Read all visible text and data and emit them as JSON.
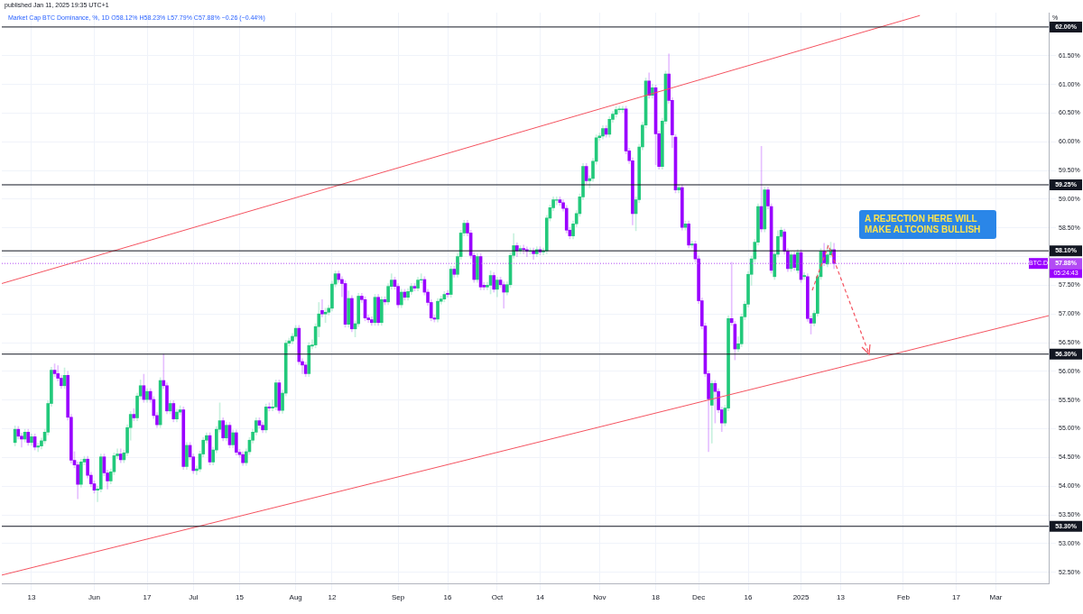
{
  "chart_data": {
    "type": "candlestick",
    "subtitle": "published Jan 11, 2025 19:35 UTC+1",
    "title": "Market Cap BTC Dominance, %, 1D  O58.12% H58.23% L57.79% C57.88% −0.26 (−0.44%)",
    "ylabel": "%",
    "annotations": [
      "A REJECTION HERE WILL MAKE ALTCOINS BULLISH",
      "BTC.D",
      "05:24:43"
    ],
    "colors": [
      "#22c97b",
      "#9a00ff",
      "#9a00ff",
      "#22c97b",
      "#9a00ff",
      "#22c97b",
      "#9a00ff",
      "#22c97b",
      "#22c97b",
      "#22c97b",
      "#22c97b",
      "#22c97b",
      "#9a00ff",
      "#9a00ff",
      "#9a00ff",
      "#22c97b",
      "#9a00ff",
      "#9a00ff",
      "#9a00ff",
      "#9a00ff",
      "#22c97b",
      "#22c97b",
      "#9a00ff",
      "#9a00ff",
      "#9a00ff",
      "#22c97b",
      "#22c97b",
      "#9a00ff",
      "#9a00ff",
      "#22c97b",
      "#22c97b",
      "#22c97b",
      "#9a00ff",
      "#22c97b",
      "#22c97b",
      "#22c97b",
      "#9a00ff",
      "#22c97b",
      "#22c97b",
      "#9a00ff",
      "#22c97b",
      "#9a00ff",
      "#9a00ff",
      "#9a00ff",
      "#22c97b",
      "#9a00ff",
      "#9a00ff",
      "#22c97b",
      "#9a00ff",
      "#22c97b",
      "#22c97b",
      "#9a00ff",
      "#22c97b",
      "#9a00ff",
      "#9a00ff",
      "#22c97b",
      "#22c97b",
      "#22c97b",
      "#22c97b",
      "#9a00ff",
      "#22c97b",
      "#22c97b",
      "#22c97b",
      "#9a00ff",
      "#22c97b",
      "#9a00ff",
      "#22c97b",
      "#9a00ff",
      "#9a00ff",
      "#9a00ff",
      "#22c97b",
      "#22c97b",
      "#22c97b",
      "#22c97b",
      "#9a00ff",
      "#9a00ff",
      "#22c97b",
      "#9a00ff",
      "#22c97b",
      "#22c97b",
      "#9a00ff",
      "#22c97b",
      "#22c97b",
      "#22c97b",
      "#22c97b",
      "#22c97b",
      "#9a00ff",
      "#9a00ff",
      "#9a00ff",
      "#22c97b",
      "#22c97b",
      "#22c97b",
      "#22c97b",
      "#9a00ff",
      "#22c97b",
      "#22c97b",
      "#22c97b",
      "#22c97b",
      "#9a00ff",
      "#9a00ff",
      "#9a00ff",
      "#22c97b",
      "#9a00ff",
      "#22c97b",
      "#22c97b",
      "#9a00ff",
      "#9a00ff",
      "#9a00ff",
      "#9a00ff",
      "#22c97b",
      "#9a00ff",
      "#22c97b",
      "#9a00ff",
      "#22c97b",
      "#22c97b",
      "#9a00ff",
      "#9a00ff",
      "#22c97b",
      "#9a00ff",
      "#22c97b",
      "#22c97b",
      "#9a00ff",
      "#22c97b",
      "#22c97b",
      "#9a00ff",
      "#9a00ff",
      "#9a00ff",
      "#9a00ff",
      "#22c97b",
      "#22c97b",
      "#22c97b",
      "#9a00ff",
      "#22c97b",
      "#9a00ff",
      "#22c97b",
      "#22c97b",
      "#22c97b",
      "#9a00ff",
      "#9a00ff",
      "#9a00ff",
      "#22c97b",
      "#9a00ff",
      "#9a00ff",
      "#22c97b",
      "#22c97b",
      "#9a00ff",
      "#22c97b",
      "#9a00ff",
      "#9a00ff",
      "#22c97b",
      "#22c97b",
      "#22c97b",
      "#9a00ff",
      "#22c97b",
      "#9a00ff",
      "#9a00ff",
      "#22c97b",
      "#9a00ff",
      "#22c97b",
      "#9a00ff",
      "#22c97b",
      "#22c97b",
      "#22c97b",
      "#22c97b",
      "#22c97b",
      "#9a00ff",
      "#9a00ff",
      "#9a00ff",
      "#9a00ff",
      "#22c97b",
      "#22c97b",
      "#22c97b",
      "#22c97b",
      "#9a00ff",
      "#22c97b",
      "#22c97b",
      "#22c97b",
      "#22c97b",
      "#22c97b",
      "#9a00ff",
      "#22c97b",
      "#22c97b",
      "#22c97b",
      "#22c97b",
      "#22c97b",
      "#9a00ff",
      "#9a00ff",
      "#9a00ff",
      "#22c97b",
      "#22c97b",
      "#22c97b",
      "#22c97b",
      "#9a00ff",
      "#22c97b",
      "#9a00ff",
      "#9a00ff",
      "#22c97b",
      "#22c97b",
      "#9a00ff",
      "#9a00ff",
      "#9a00ff",
      "#22c97b",
      "#9a00ff",
      "#22c97b",
      "#9a00ff",
      "#22c97b",
      "#9a00ff",
      "#9a00ff",
      "#9a00ff",
      "#9a00ff",
      "#9a00ff",
      "#22c97b",
      "#9a00ff",
      "#9a00ff",
      "#9a00ff",
      "#22c97b",
      "#22c97b",
      "#9a00ff",
      "#9a00ff",
      "#22c97b",
      "#22c97b",
      "#22c97b",
      "#22c97b",
      "#22c97b",
      "#22c97b",
      "#22c97b",
      "#9a00ff",
      "#22c97b",
      "#9a00ff",
      "#9a00ff",
      "#22c97b",
      "#22c97b",
      "#22c97b",
      "#9a00ff",
      "#9a00ff",
      "#22c97b",
      "#9a00ff",
      "#22c97b",
      "#9a00ff",
      "#22c97b",
      "#9a00ff",
      "#9a00ff",
      "#22c97b",
      "#22c97b",
      "#22c97b",
      "#9a00ff",
      "#22c97b",
      "#22c97b",
      "#9a00ff"
    ],
    "x": [
      "2024-05-08",
      "2024-05-09",
      "2024-05-10",
      "2024-05-11",
      "2024-05-12",
      "2024-05-13",
      "2024-05-14",
      "2024-05-15",
      "2024-05-16",
      "2024-05-17",
      "2024-05-18",
      "2024-05-19",
      "2024-05-20",
      "2024-05-21",
      "2024-05-22",
      "2024-05-23",
      "2024-05-24",
      "2024-05-25",
      "2024-05-26",
      "2024-05-27",
      "2024-05-28",
      "2024-05-29",
      "2024-05-30",
      "2024-05-31",
      "2024-06-01",
      "2024-06-02",
      "2024-06-03",
      "2024-06-04",
      "2024-06-05",
      "2024-06-06",
      "2024-06-07",
      "2024-06-08",
      "2024-06-09",
      "2024-06-10",
      "2024-06-11",
      "2024-06-12",
      "2024-06-13",
      "2024-06-14",
      "2024-06-15",
      "2024-06-16",
      "2024-06-17",
      "2024-06-18",
      "2024-06-19",
      "2024-06-20",
      "2024-06-21",
      "2024-06-22",
      "2024-06-23",
      "2024-06-24",
      "2024-06-25",
      "2024-06-26",
      "2024-06-27",
      "2024-06-28",
      "2024-06-29",
      "2024-06-30",
      "2024-07-01",
      "2024-07-02",
      "2024-07-03",
      "2024-07-04",
      "2024-07-05",
      "2024-07-06",
      "2024-07-07",
      "2024-07-08",
      "2024-07-09",
      "2024-07-10",
      "2024-07-11",
      "2024-07-12",
      "2024-07-13",
      "2024-07-14",
      "2024-07-15",
      "2024-07-16",
      "2024-07-17",
      "2024-07-18",
      "2024-07-19",
      "2024-07-20",
      "2024-07-21",
      "2024-07-22",
      "2024-07-23",
      "2024-07-24",
      "2024-07-25",
      "2024-07-26",
      "2024-07-27",
      "2024-07-28",
      "2024-07-29",
      "2024-07-30",
      "2024-07-31",
      "2024-08-01",
      "2024-08-02",
      "2024-08-03",
      "2024-08-04",
      "2024-08-05",
      "2024-08-06",
      "2024-08-07",
      "2024-08-08",
      "2024-08-09",
      "2024-08-10",
      "2024-08-11",
      "2024-08-12",
      "2024-08-13",
      "2024-08-14",
      "2024-08-15",
      "2024-08-16",
      "2024-08-17",
      "2024-08-18",
      "2024-08-19",
      "2024-08-20",
      "2024-08-21",
      "2024-08-22",
      "2024-08-23",
      "2024-08-24",
      "2024-08-25",
      "2024-08-26",
      "2024-08-27",
      "2024-08-28",
      "2024-08-29",
      "2024-08-30",
      "2024-08-31",
      "2024-09-01",
      "2024-09-02",
      "2024-09-03",
      "2024-09-04",
      "2024-09-05",
      "2024-09-06",
      "2024-09-07",
      "2024-09-08",
      "2024-09-09",
      "2024-09-10",
      "2024-09-11",
      "2024-09-12",
      "2024-09-13",
      "2024-09-14",
      "2024-09-15",
      "2024-09-16",
      "2024-09-17",
      "2024-09-18",
      "2024-09-19",
      "2024-09-20",
      "2024-09-21",
      "2024-09-22",
      "2024-09-23",
      "2024-09-24",
      "2024-09-25",
      "2024-09-26",
      "2024-09-27",
      "2024-09-28",
      "2024-09-29",
      "2024-09-30",
      "2024-10-01",
      "2024-10-02",
      "2024-10-03",
      "2024-10-04",
      "2024-10-05",
      "2024-10-06",
      "2024-10-07",
      "2024-10-08",
      "2024-10-09",
      "2024-10-10",
      "2024-10-11",
      "2024-10-12",
      "2024-10-13",
      "2024-10-14",
      "2024-10-15",
      "2024-10-16",
      "2024-10-17",
      "2024-10-18",
      "2024-10-19",
      "2024-10-20",
      "2024-10-21",
      "2024-10-22",
      "2024-10-23",
      "2024-10-24",
      "2024-10-25",
      "2024-10-26",
      "2024-10-27",
      "2024-10-28",
      "2024-10-29",
      "2024-10-30",
      "2024-10-31",
      "2024-11-01",
      "2024-11-02",
      "2024-11-03",
      "2024-11-04",
      "2024-11-05",
      "2024-11-06",
      "2024-11-07",
      "2024-11-08",
      "2024-11-09",
      "2024-11-10",
      "2024-11-11",
      "2024-11-12",
      "2024-11-13",
      "2024-11-14",
      "2024-11-15",
      "2024-11-16",
      "2024-11-17",
      "2024-11-18",
      "2024-11-19",
      "2024-11-20",
      "2024-11-21",
      "2024-11-22",
      "2024-11-23",
      "2024-11-24",
      "2024-11-25",
      "2024-11-26",
      "2024-11-27",
      "2024-11-28",
      "2024-11-29",
      "2024-11-30",
      "2024-12-01",
      "2024-12-02",
      "2024-12-03",
      "2024-12-04",
      "2024-12-05",
      "2024-12-06",
      "2024-12-07",
      "2024-12-08",
      "2024-12-09",
      "2024-12-10",
      "2024-12-11",
      "2024-12-12",
      "2024-12-13",
      "2024-12-14",
      "2024-12-15",
      "2024-12-16",
      "2024-12-17",
      "2024-12-18",
      "2024-12-19",
      "2024-12-20",
      "2024-12-21",
      "2024-12-22",
      "2024-12-23",
      "2024-12-24",
      "2024-12-25",
      "2024-12-26",
      "2024-12-27",
      "2024-12-28",
      "2024-12-29",
      "2024-12-30",
      "2024-12-31",
      "2025-01-01",
      "2025-01-02",
      "2025-01-03",
      "2025-01-04",
      "2025-01-05",
      "2025-01-06",
      "2025-01-07",
      "2025-01-08",
      "2025-01-09",
      "2025-01-10",
      "2025-01-11"
    ],
    "ohlc": [
      [
        54.76,
        55.05,
        54.7,
        54.99
      ],
      [
        54.99,
        55.04,
        54.82,
        54.87
      ],
      [
        54.87,
        54.92,
        54.68,
        54.82
      ],
      [
        54.82,
        54.99,
        54.77,
        54.94
      ],
      [
        54.94,
        54.99,
        54.71,
        54.76
      ],
      [
        54.76,
        54.91,
        54.71,
        54.86
      ],
      [
        54.86,
        54.91,
        54.63,
        54.68
      ],
      [
        54.68,
        54.75,
        54.6,
        54.7
      ],
      [
        54.7,
        54.84,
        54.65,
        54.79
      ],
      [
        54.79,
        54.99,
        54.74,
        54.94
      ],
      [
        54.94,
        55.49,
        54.89,
        55.44
      ],
      [
        55.44,
        56.07,
        55.39,
        56.02
      ],
      [
        56.02,
        56.13,
        55.91,
        55.96
      ],
      [
        55.96,
        56.1,
        55.83,
        55.88
      ],
      [
        55.88,
        55.93,
        55.7,
        55.75
      ],
      [
        55.75,
        56.06,
        55.7,
        55.93
      ],
      [
        55.93,
        56.0,
        55.15,
        55.2
      ],
      [
        55.2,
        55.25,
        54.4,
        54.45
      ],
      [
        54.45,
        54.6,
        54.32,
        54.37
      ],
      [
        54.37,
        54.42,
        53.78,
        54.03
      ],
      [
        54.03,
        54.47,
        53.98,
        54.42
      ],
      [
        54.42,
        54.52,
        54.37,
        54.47
      ],
      [
        54.47,
        54.52,
        54.14,
        54.19
      ],
      [
        54.19,
        54.24,
        53.99,
        54.04
      ],
      [
        54.04,
        54.09,
        53.88,
        53.93
      ],
      [
        53.93,
        54.0,
        53.73,
        53.95
      ],
      [
        53.95,
        54.56,
        53.9,
        54.51
      ],
      [
        54.51,
        54.56,
        54.18,
        54.23
      ],
      [
        54.23,
        54.28,
        53.95,
        54.09
      ],
      [
        54.09,
        54.3,
        54.04,
        54.25
      ],
      [
        54.25,
        54.58,
        54.2,
        54.53
      ],
      [
        54.53,
        54.65,
        54.48,
        54.56
      ],
      [
        54.56,
        54.65,
        54.41,
        54.46
      ],
      [
        54.46,
        54.63,
        54.41,
        54.58
      ],
      [
        54.58,
        55.07,
        54.53,
        55.02
      ],
      [
        55.02,
        55.3,
        54.8,
        55.25
      ],
      [
        55.25,
        55.35,
        55.14,
        55.19
      ],
      [
        55.19,
        55.62,
        55.14,
        55.57
      ],
      [
        55.57,
        55.85,
        55.52,
        55.75
      ],
      [
        55.75,
        55.95,
        55.46,
        55.51
      ],
      [
        55.51,
        55.7,
        55.46,
        55.65
      ],
      [
        55.65,
        55.7,
        55.46,
        55.51
      ],
      [
        55.51,
        55.56,
        55.18,
        55.23
      ],
      [
        55.23,
        55.28,
        55.02,
        55.07
      ],
      [
        55.07,
        55.89,
        55.02,
        55.84
      ],
      [
        55.84,
        56.3,
        55.7,
        55.75
      ],
      [
        55.75,
        55.8,
        55.26,
        55.31
      ],
      [
        55.31,
        55.49,
        55.26,
        55.44
      ],
      [
        55.44,
        55.49,
        55.12,
        55.17
      ],
      [
        55.17,
        55.34,
        55.12,
        55.29
      ],
      [
        55.29,
        55.4,
        55.24,
        55.33
      ],
      [
        55.33,
        55.38,
        54.29,
        54.34
      ],
      [
        54.34,
        54.76,
        54.29,
        54.71
      ],
      [
        54.71,
        54.76,
        54.46,
        54.51
      ],
      [
        54.51,
        54.56,
        54.22,
        54.27
      ],
      [
        54.27,
        54.35,
        54.2,
        54.3
      ],
      [
        54.3,
        54.61,
        54.25,
        54.56
      ],
      [
        54.56,
        54.85,
        54.51,
        54.8
      ],
      [
        54.8,
        54.93,
        54.75,
        54.88
      ],
      [
        54.88,
        54.93,
        54.37,
        54.42
      ],
      [
        54.42,
        54.68,
        54.37,
        54.63
      ],
      [
        54.63,
        55.04,
        54.58,
        54.99
      ],
      [
        54.99,
        55.45,
        54.94,
        55.14
      ],
      [
        55.14,
        55.19,
        54.79,
        54.84
      ],
      [
        54.84,
        55.11,
        54.79,
        55.06
      ],
      [
        55.06,
        55.11,
        54.67,
        54.72
      ],
      [
        54.72,
        54.98,
        54.67,
        54.93
      ],
      [
        54.93,
        54.98,
        54.54,
        54.59
      ],
      [
        54.59,
        54.64,
        54.5,
        54.55
      ],
      [
        54.55,
        54.6,
        54.36,
        54.41
      ],
      [
        54.41,
        54.65,
        54.36,
        54.6
      ],
      [
        54.6,
        54.85,
        54.55,
        54.8
      ],
      [
        54.8,
        54.99,
        54.75,
        54.94
      ],
      [
        54.94,
        55.19,
        54.89,
        55.14
      ],
      [
        55.14,
        55.19,
        55.01,
        55.06
      ],
      [
        55.06,
        55.11,
        54.93,
        54.98
      ],
      [
        54.98,
        55.43,
        54.93,
        55.38
      ],
      [
        55.38,
        55.45,
        55.31,
        55.36
      ],
      [
        55.36,
        55.5,
        55.31,
        55.38
      ],
      [
        55.38,
        55.85,
        55.33,
        55.8
      ],
      [
        55.8,
        55.85,
        55.27,
        55.32
      ],
      [
        55.32,
        55.67,
        55.27,
        55.62
      ],
      [
        55.62,
        56.54,
        55.57,
        56.49
      ],
      [
        56.49,
        56.58,
        56.44,
        56.53
      ],
      [
        56.53,
        56.66,
        56.48,
        56.61
      ],
      [
        56.61,
        56.8,
        56.56,
        56.75
      ],
      [
        56.75,
        56.8,
        56.12,
        56.17
      ],
      [
        56.17,
        56.22,
        55.96,
        56.11
      ],
      [
        56.11,
        56.16,
        55.91,
        55.96
      ],
      [
        55.96,
        56.5,
        55.91,
        56.45
      ],
      [
        56.44,
        56.55,
        56.39,
        56.46
      ],
      [
        56.46,
        56.83,
        56.41,
        56.78
      ],
      [
        56.78,
        57.2,
        56.6,
        57.0
      ],
      [
        57.06,
        57.25,
        56.95,
        57.0
      ],
      [
        57.0,
        57.1,
        56.85,
        57.03
      ],
      [
        57.03,
        57.15,
        56.98,
        57.1
      ],
      [
        57.1,
        57.57,
        57.05,
        57.52
      ],
      [
        57.52,
        57.75,
        57.47,
        57.7
      ],
      [
        57.7,
        57.75,
        57.55,
        57.6
      ],
      [
        57.6,
        57.65,
        57.3,
        57.53
      ],
      [
        57.53,
        57.58,
        56.77,
        56.82
      ],
      [
        56.82,
        57.4,
        56.77,
        57.27
      ],
      [
        57.27,
        57.32,
        56.69,
        56.74
      ],
      [
        56.74,
        56.88,
        56.6,
        56.83
      ],
      [
        56.83,
        57.36,
        56.78,
        57.31
      ],
      [
        57.31,
        57.36,
        57.2,
        57.25
      ],
      [
        57.25,
        57.3,
        56.88,
        56.93
      ],
      [
        56.93,
        56.98,
        56.85,
        56.9
      ],
      [
        56.9,
        56.95,
        56.8,
        56.85
      ],
      [
        56.85,
        57.34,
        56.8,
        57.29
      ],
      [
        57.29,
        57.34,
        56.8,
        56.85
      ],
      [
        56.85,
        57.3,
        56.8,
        57.25
      ],
      [
        57.25,
        57.3,
        57.16,
        57.21
      ],
      [
        57.21,
        57.53,
        57.16,
        57.48
      ],
      [
        57.48,
        57.7,
        57.43,
        57.59
      ],
      [
        57.59,
        57.64,
        57.43,
        57.48
      ],
      [
        57.48,
        57.53,
        57.11,
        57.16
      ],
      [
        57.16,
        57.43,
        57.11,
        57.38
      ],
      [
        57.38,
        57.43,
        57.24,
        57.29
      ],
      [
        57.29,
        57.44,
        57.24,
        57.39
      ],
      [
        57.39,
        57.53,
        57.34,
        57.48
      ],
      [
        57.48,
        57.53,
        57.4,
        57.45
      ],
      [
        57.45,
        57.64,
        57.4,
        57.59
      ],
      [
        57.59,
        57.7,
        57.54,
        57.6
      ],
      [
        57.6,
        57.65,
        57.33,
        57.38
      ],
      [
        57.38,
        57.43,
        57.15,
        57.2
      ],
      [
        57.2,
        57.25,
        56.88,
        56.93
      ],
      [
        56.93,
        56.98,
        56.86,
        56.91
      ],
      [
        56.91,
        57.27,
        56.86,
        57.22
      ],
      [
        57.22,
        57.31,
        57.17,
        57.26
      ],
      [
        57.26,
        57.39,
        57.21,
        57.34
      ],
      [
        57.36,
        57.41,
        57.29,
        57.34
      ],
      [
        57.34,
        57.83,
        57.29,
        57.78
      ],
      [
        57.78,
        57.83,
        57.64,
        57.69
      ],
      [
        57.69,
        58.05,
        57.64,
        58.0
      ],
      [
        58.0,
        58.46,
        57.95,
        58.41
      ],
      [
        58.41,
        58.63,
        58.36,
        58.58
      ],
      [
        58.58,
        58.63,
        58.36,
        58.41
      ],
      [
        58.41,
        58.46,
        57.97,
        58.02
      ],
      [
        58.02,
        58.07,
        57.55,
        57.6
      ],
      [
        57.6,
        58.05,
        57.55,
        58.0
      ],
      [
        58.0,
        58.05,
        57.42,
        57.47
      ],
      [
        57.5,
        57.55,
        57.42,
        57.47
      ],
      [
        57.47,
        57.55,
        57.42,
        57.5
      ],
      [
        57.5,
        57.75,
        57.35,
        57.67
      ],
      [
        57.67,
        57.72,
        57.38,
        57.43
      ],
      [
        57.43,
        57.64,
        57.3,
        57.59
      ],
      [
        57.59,
        57.64,
        57.46,
        57.51
      ],
      [
        57.51,
        57.56,
        57.1,
        57.38
      ],
      [
        57.38,
        57.56,
        57.33,
        57.51
      ],
      [
        57.51,
        58.07,
        57.46,
        58.02
      ],
      [
        58.02,
        58.4,
        57.97,
        58.19
      ],
      [
        58.19,
        58.24,
        58.0,
        58.1
      ],
      [
        58.1,
        58.19,
        58.05,
        58.14
      ],
      [
        58.14,
        58.2,
        58.05,
        58.12
      ],
      [
        58.12,
        58.17,
        58.0,
        58.09
      ],
      [
        58.09,
        58.15,
        58.04,
        58.1
      ],
      [
        58.1,
        58.15,
        57.95,
        58.05
      ],
      [
        58.05,
        58.17,
        58.0,
        58.12
      ],
      [
        58.12,
        58.17,
        58.03,
        58.08
      ],
      [
        58.08,
        58.15,
        58.03,
        58.1
      ],
      [
        58.1,
        58.72,
        58.05,
        58.67
      ],
      [
        58.67,
        58.9,
        58.62,
        58.85
      ],
      [
        58.85,
        59.04,
        58.8,
        58.99
      ],
      [
        58.98,
        59.04,
        58.9,
        58.99
      ],
      [
        58.99,
        59.04,
        58.89,
        58.94
      ],
      [
        58.94,
        58.99,
        58.79,
        58.84
      ],
      [
        58.84,
        58.89,
        58.41,
        58.46
      ],
      [
        58.46,
        58.51,
        58.31,
        58.36
      ],
      [
        58.36,
        58.62,
        58.31,
        58.57
      ],
      [
        58.57,
        58.8,
        58.52,
        58.75
      ],
      [
        58.75,
        59.09,
        58.7,
        59.04
      ],
      [
        59.04,
        59.62,
        58.99,
        59.57
      ],
      [
        59.57,
        59.62,
        59.27,
        59.32
      ],
      [
        59.32,
        59.41,
        59.2,
        59.36
      ],
      [
        59.36,
        59.71,
        59.31,
        59.66
      ],
      [
        59.66,
        60.12,
        59.61,
        60.07
      ],
      [
        60.07,
        60.15,
        60.02,
        60.1
      ],
      [
        60.1,
        60.28,
        60.05,
        60.23
      ],
      [
        60.23,
        60.28,
        60.08,
        60.13
      ],
      [
        60.13,
        60.44,
        60.08,
        60.39
      ],
      [
        60.39,
        60.53,
        60.34,
        60.48
      ],
      [
        60.48,
        60.61,
        60.43,
        60.56
      ],
      [
        60.56,
        60.62,
        60.51,
        60.57
      ],
      [
        60.56,
        60.62,
        60.51,
        60.57
      ],
      [
        60.57,
        60.62,
        59.79,
        59.84
      ],
      [
        59.84,
        59.89,
        59.62,
        59.67
      ],
      [
        59.67,
        59.72,
        58.55,
        58.75
      ],
      [
        58.75,
        59.04,
        58.45,
        58.99
      ],
      [
        58.99,
        59.96,
        58.94,
        59.91
      ],
      [
        59.91,
        60.34,
        59.86,
        60.29
      ],
      [
        60.29,
        61.11,
        60.24,
        61.06
      ],
      [
        61.06,
        61.2,
        60.76,
        60.81
      ],
      [
        60.81,
        61.0,
        60.76,
        60.94
      ],
      [
        60.94,
        60.99,
        59.6,
        60.14
      ],
      [
        60.14,
        60.19,
        59.52,
        59.57
      ],
      [
        59.57,
        60.41,
        59.52,
        60.36
      ],
      [
        60.36,
        61.23,
        60.31,
        61.18
      ],
      [
        61.18,
        61.53,
        60.67,
        60.72
      ],
      [
        60.72,
        60.77,
        59.9,
        60.12
      ],
      [
        60.08,
        60.13,
        59.11,
        59.16
      ],
      [
        59.16,
        59.25,
        59.11,
        59.2
      ],
      [
        59.2,
        59.25,
        58.46,
        58.51
      ],
      [
        58.51,
        58.62,
        58.46,
        58.57
      ],
      [
        58.57,
        58.62,
        58.15,
        58.2
      ],
      [
        58.2,
        58.27,
        58.15,
        58.22
      ],
      [
        58.22,
        58.27,
        57.91,
        57.96
      ],
      [
        57.96,
        58.01,
        57.18,
        57.23
      ],
      [
        57.23,
        57.28,
        56.74,
        56.79
      ],
      [
        56.79,
        56.84,
        55.91,
        55.96
      ],
      [
        55.96,
        56.01,
        54.6,
        55.52
      ],
      [
        55.41,
        55.84,
        54.75,
        55.79
      ],
      [
        55.79,
        55.84,
        55.1,
        55.65
      ],
      [
        55.65,
        55.7,
        55.28,
        55.33
      ],
      [
        55.33,
        55.38,
        54.95,
        55.1
      ],
      [
        55.1,
        55.41,
        55.05,
        55.36
      ],
      [
        55.36,
        56.97,
        55.31,
        56.92
      ],
      [
        56.92,
        57.9,
        56.8,
        56.85
      ],
      [
        56.82,
        56.87,
        56.2,
        56.39
      ],
      [
        56.39,
        56.6,
        56.34,
        56.48
      ],
      [
        56.48,
        57.0,
        56.43,
        56.95
      ],
      [
        56.95,
        57.22,
        56.9,
        57.17
      ],
      [
        57.17,
        57.74,
        57.12,
        57.69
      ],
      [
        57.69,
        58.01,
        57.5,
        57.96
      ],
      [
        57.96,
        58.3,
        57.91,
        58.25
      ],
      [
        58.25,
        58.92,
        58.2,
        58.87
      ],
      [
        58.87,
        59.92,
        58.43,
        58.48
      ],
      [
        58.48,
        59.21,
        58.43,
        59.16
      ],
      [
        59.16,
        59.21,
        58.83,
        58.88
      ],
      [
        58.87,
        58.92,
        57.71,
        57.76
      ],
      [
        57.65,
        58.09,
        57.6,
        58.04
      ],
      [
        58.04,
        58.45,
        57.99,
        58.35
      ],
      [
        58.35,
        58.51,
        58.3,
        58.46
      ],
      [
        58.43,
        58.48,
        58.04,
        58.09
      ],
      [
        58.09,
        58.14,
        57.74,
        57.79
      ],
      [
        57.79,
        58.08,
        57.74,
        58.03
      ],
      [
        58.03,
        58.08,
        57.76,
        57.81
      ],
      [
        57.76,
        58.12,
        57.71,
        58.07
      ],
      [
        58.07,
        58.12,
        57.55,
        57.6
      ],
      [
        57.65,
        57.72,
        57.6,
        57.67
      ],
      [
        57.65,
        57.7,
        56.87,
        56.92
      ],
      [
        56.92,
        56.97,
        56.65,
        56.84
      ],
      [
        56.84,
        57.06,
        56.79,
        57.01
      ],
      [
        57.01,
        57.7,
        56.96,
        57.65
      ],
      [
        57.65,
        58.14,
        57.6,
        58.09
      ],
      [
        58.09,
        58.23,
        57.84,
        57.89
      ],
      [
        57.87,
        58.2,
        57.82,
        58.03
      ],
      [
        58.03,
        58.25,
        57.98,
        58.12
      ],
      [
        58.12,
        58.23,
        57.79,
        57.88
      ]
    ],
    "series": [
      {
        "type": "line",
        "color": "#f4525f",
        "x": [
          "2024-05-04",
          "2025-02-06"
        ],
        "values": [
          57.53,
          62.2
        ]
      },
      {
        "type": "line",
        "color": "#f4525f",
        "x": [
          "2024-05-04",
          "2025-03-17"
        ],
        "values": [
          52.45,
          56.97
        ]
      }
    ],
    "xlim": [
      "2024-05-04",
      "2025-03-17"
    ],
    "xticks": [
      {
        "value": "2024-05-13",
        "label": "13"
      },
      {
        "value": "2024-06-01",
        "label": "Jun"
      },
      {
        "value": "2024-06-17",
        "label": "17"
      },
      {
        "value": "2024-07-01",
        "label": "Jul"
      },
      {
        "value": "2024-07-15",
        "label": "15"
      },
      {
        "value": "2024-08-01",
        "label": "Aug"
      },
      {
        "value": "2024-08-12",
        "label": "12"
      },
      {
        "value": "2024-09-01",
        "label": "Sep"
      },
      {
        "value": "2024-09-16",
        "label": "16"
      },
      {
        "value": "2024-10-01",
        "label": "Oct"
      },
      {
        "value": "2024-10-14",
        "label": "14"
      },
      {
        "value": "2024-11-01",
        "label": "Nov"
      },
      {
        "value": "2024-11-18",
        "label": "18"
      },
      {
        "value": "2024-12-01",
        "label": "Dec"
      },
      {
        "value": "2024-12-16",
        "label": "16"
      },
      {
        "value": "2025-01-01",
        "label": "2025"
      },
      {
        "value": "2025-01-13",
        "label": "13"
      },
      {
        "value": "2025-02-01",
        "label": "Feb"
      },
      {
        "value": "2025-02-17",
        "label": "17"
      },
      {
        "value": "2025-03-01",
        "label": "Mar"
      }
    ],
    "ylim": [
      52.3,
      62.25
    ],
    "yticks": [
      {
        "value": 52.5,
        "label": "52.50%"
      },
      {
        "value": 53,
        "label": "53.00%"
      },
      {
        "value": 53.5,
        "label": "53.50%"
      },
      {
        "value": 54,
        "label": "54.00%"
      },
      {
        "value": 54.5,
        "label": "54.50%"
      },
      {
        "value": 55,
        "label": "55.00%"
      },
      {
        "value": 55.5,
        "label": "55.50%"
      },
      {
        "value": 56,
        "label": "56.00%"
      },
      {
        "value": 56.5,
        "label": "56.50%"
      },
      {
        "value": 57,
        "label": "57.00%"
      },
      {
        "value": 57.5,
        "label": "57.50%"
      },
      {
        "value": 58,
        "label": null
      },
      {
        "value": 58.5,
        "label": "58.50%"
      },
      {
        "value": 59,
        "label": "59.00%"
      },
      {
        "value": 59.5,
        "label": "59.50%"
      },
      {
        "value": 60,
        "label": "60.00%"
      },
      {
        "value": 60.5,
        "label": "60.50%"
      },
      {
        "value": 61,
        "label": "61.00%"
      },
      {
        "value": 61.5,
        "label": "61.50%"
      }
    ],
    "ref_lines": [
      {
        "axis": "y",
        "value": 62.0,
        "label": "62.00%",
        "color": "#131722"
      },
      {
        "axis": "y",
        "value": 59.25,
        "label": "59.25%",
        "color": "#131722"
      },
      {
        "axis": "y",
        "value": 58.1,
        "label": "58.10%",
        "color": "#131722"
      },
      {
        "axis": "y",
        "value": 57.88,
        "label": "57.88%",
        "color": "#b24bf3",
        "line_style": "dotted"
      },
      {
        "axis": "y",
        "value": 56.3,
        "label": "56.30%",
        "color": "#131722"
      },
      {
        "axis": "y",
        "value": 53.3,
        "label": "53.30%",
        "color": "#131722"
      }
    ],
    "grid": true
  }
}
